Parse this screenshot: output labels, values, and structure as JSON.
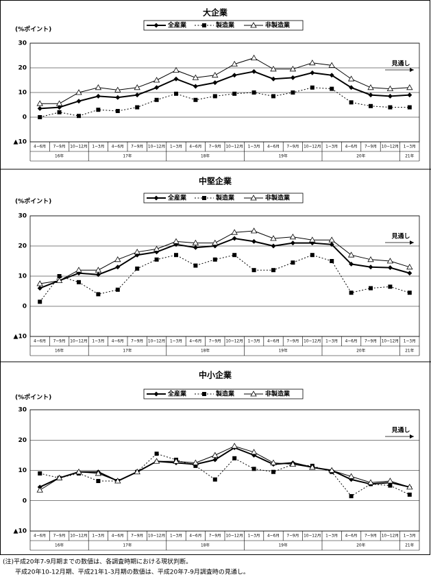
{
  "chart_data": [
    {
      "type": "line",
      "title": "大企業",
      "y_label": "(%ポイント)",
      "categories": [
        "4~6月",
        "7~9月",
        "10~12月",
        "1~3月",
        "4~6月",
        "7~9月",
        "10~12月",
        "1~3月",
        "4~6月",
        "7~9月",
        "10~12月",
        "1~3月",
        "4~6月",
        "7~9月",
        "10~12月",
        "1~3月",
        "4~6月",
        "7~9月",
        "10~12月",
        "1~3月"
      ],
      "category_years": [
        "16年",
        "16年",
        "16年",
        "17年",
        "17年",
        "17年",
        "17年",
        "18年",
        "18年",
        "18年",
        "18年",
        "19年",
        "19年",
        "19年",
        "19年",
        "20年",
        "20年",
        "20年",
        "20年",
        "21年"
      ],
      "ylim": [
        -10,
        30
      ],
      "yticks": [
        {
          "value": -10,
          "label": "▲10"
        },
        0,
        10,
        20,
        30
      ],
      "grid": true,
      "annotation": "見通し",
      "legend": "top",
      "series": [
        {
          "name": "全産業",
          "color": "#000000",
          "line_style": "solid",
          "line_width": 2,
          "marker": "diamond",
          "values": [
            3.5,
            4,
            6.5,
            8.5,
            8,
            9,
            12,
            15.5,
            12.5,
            14,
            17,
            18.5,
            15.5,
            16,
            18,
            17,
            12,
            9,
            8.5,
            9
          ]
        },
        {
          "name": "製造業",
          "color": "#000000",
          "line_style": "dotted",
          "line_width": 1,
          "marker": "square",
          "values": [
            0,
            2,
            0.5,
            3,
            2.5,
            4,
            7,
            9.5,
            7,
            8.5,
            9.5,
            10,
            8.5,
            10,
            12,
            11.5,
            6,
            4.5,
            4,
            4
          ]
        },
        {
          "name": "非製造業",
          "color": "#000000",
          "line_style": "solid",
          "line_width": 1,
          "marker": "triangle",
          "values": [
            5.5,
            5.5,
            10,
            12,
            11,
            12,
            15,
            19,
            16,
            17,
            21.5,
            24,
            19.5,
            19.5,
            22,
            21,
            15.5,
            12,
            11.5,
            12
          ]
        }
      ]
    },
    {
      "type": "line",
      "title": "中堅企業",
      "y_label": "(%ポイント)",
      "categories": [
        "4~6月",
        "7~9月",
        "10~12月",
        "1~3月",
        "4~6月",
        "7~9月",
        "10~12月",
        "1~3月",
        "4~6月",
        "7~9月",
        "10~12月",
        "1~3月",
        "4~6月",
        "7~9月",
        "10~12月",
        "1~3月",
        "4~6月",
        "7~9月",
        "10~12月",
        "1~3月"
      ],
      "category_years": [
        "16年",
        "16年",
        "16年",
        "17年",
        "17年",
        "17年",
        "17年",
        "18年",
        "18年",
        "18年",
        "18年",
        "19年",
        "19年",
        "19年",
        "19年",
        "20年",
        "20年",
        "20年",
        "20年",
        "21年"
      ],
      "ylim": [
        -10,
        30
      ],
      "yticks": [
        {
          "value": -10,
          "label": "▲10"
        },
        0,
        10,
        20,
        30
      ],
      "grid": true,
      "annotation": "見通し",
      "legend": "top",
      "series": [
        {
          "name": "全産業",
          "color": "#000000",
          "line_style": "solid",
          "line_width": 2,
          "marker": "diamond",
          "values": [
            6,
            8.5,
            11,
            10.5,
            13,
            17,
            18,
            20.5,
            19.5,
            20,
            22.5,
            21.5,
            20,
            21,
            21,
            20.5,
            14,
            13,
            12.8,
            11
          ]
        },
        {
          "name": "製造業",
          "color": "#000000",
          "line_style": "dotted",
          "line_width": 1,
          "marker": "square",
          "values": [
            1.5,
            10,
            8,
            4,
            5.5,
            12.5,
            15.5,
            17,
            13.5,
            15.5,
            17,
            12,
            12,
            14.5,
            17,
            15,
            4.5,
            6,
            6.5,
            4.5
          ]
        },
        {
          "name": "非製造業",
          "color": "#000000",
          "line_style": "solid",
          "line_width": 1,
          "marker": "triangle",
          "values": [
            7.5,
            8.5,
            12,
            12,
            15.5,
            18,
            19,
            21.5,
            21,
            21,
            24.5,
            25,
            22.5,
            23,
            22,
            22,
            17,
            15.5,
            15,
            13
          ]
        }
      ]
    },
    {
      "type": "line",
      "title": "中小企業",
      "y_label": "(%ポイント)",
      "categories": [
        "4~6月",
        "7~9月",
        "10~12月",
        "1~3月",
        "4~6月",
        "7~9月",
        "10~12月",
        "1~3月",
        "4~6月",
        "7~9月",
        "10~12月",
        "1~3月",
        "4~6月",
        "7~9月",
        "10~12月",
        "1~3月",
        "4~6月",
        "7~9月",
        "10~12月",
        "1~3月"
      ],
      "category_years": [
        "16年",
        "16年",
        "16年",
        "17年",
        "17年",
        "17年",
        "17年",
        "18年",
        "18年",
        "18年",
        "18年",
        "19年",
        "19年",
        "19年",
        "19年",
        "20年",
        "20年",
        "20年",
        "20年",
        "21年"
      ],
      "ylim": [
        -10,
        30
      ],
      "yticks": [
        {
          "value": -10,
          "label": "▲10"
        },
        0,
        10,
        20,
        30
      ],
      "grid": true,
      "annotation": "見通し",
      "legend": "top",
      "series": [
        {
          "name": "全産業",
          "color": "#000000",
          "line_style": "solid",
          "line_width": 2,
          "marker": "diamond",
          "values": [
            4.5,
            7.5,
            9.5,
            9.5,
            6.5,
            9.5,
            13,
            12.5,
            12,
            13.5,
            17.5,
            15,
            12,
            12.5,
            11,
            10,
            7,
            5.5,
            6,
            4.5
          ]
        },
        {
          "name": "製造業",
          "color": "#000000",
          "line_style": "dotted",
          "line_width": 1,
          "marker": "square",
          "values": [
            9,
            7.5,
            9,
            6.5,
            6.5,
            9.5,
            15.5,
            13.5,
            11.5,
            7,
            14,
            10.5,
            9.5,
            12,
            11.5,
            9.5,
            1.5,
            5.5,
            5,
            2
          ]
        },
        {
          "name": "非製造業",
          "color": "#000000",
          "line_style": "solid",
          "line_width": 1,
          "marker": "triangle",
          "values": [
            3.5,
            7.5,
            9.5,
            9,
            6.5,
            9.5,
            13,
            13,
            12.5,
            15,
            18,
            16,
            12.5,
            12,
            11,
            10,
            8,
            6,
            6.5,
            4.5
          ]
        }
      ]
    }
  ],
  "notes": [
    "(注)平成20年7-9月期までの数値は、各調査時期における現状判断。",
    "平成20年10-12月期、平成21年1-3月期の数値は、平成20年7-9月調査時の見通し。"
  ]
}
